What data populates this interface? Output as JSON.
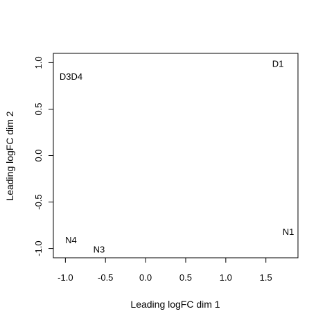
{
  "chart_data": {
    "type": "scatter",
    "title": "",
    "xlabel": "Leading logFC dim 1",
    "ylabel": "Leading logFC dim 2",
    "xlim": [
      -1.15,
      1.9
    ],
    "ylim": [
      -1.1,
      1.1
    ],
    "x_ticks": [
      -1.0,
      -0.5,
      0.0,
      0.5,
      1.0,
      1.5
    ],
    "x_tick_labels": [
      "-1.0",
      "-0.5",
      "0.0",
      "0.5",
      "1.0",
      "1.5"
    ],
    "y_ticks": [
      -1.0,
      -0.5,
      0.0,
      0.5,
      1.0
    ],
    "y_tick_labels": [
      "-1.0",
      "-0.5",
      "0.0",
      "0.5",
      "1.0"
    ],
    "grid": false,
    "points": [
      {
        "label": "D1",
        "x": 1.65,
        "y": 0.99
      },
      {
        "label": "D3D4",
        "x": -0.93,
        "y": 0.85
      },
      {
        "label": "N1",
        "x": 1.78,
        "y": -0.82
      },
      {
        "label": "N4",
        "x": -0.93,
        "y": -0.91
      },
      {
        "label": "N3",
        "x": -0.58,
        "y": -1.01
      }
    ]
  }
}
